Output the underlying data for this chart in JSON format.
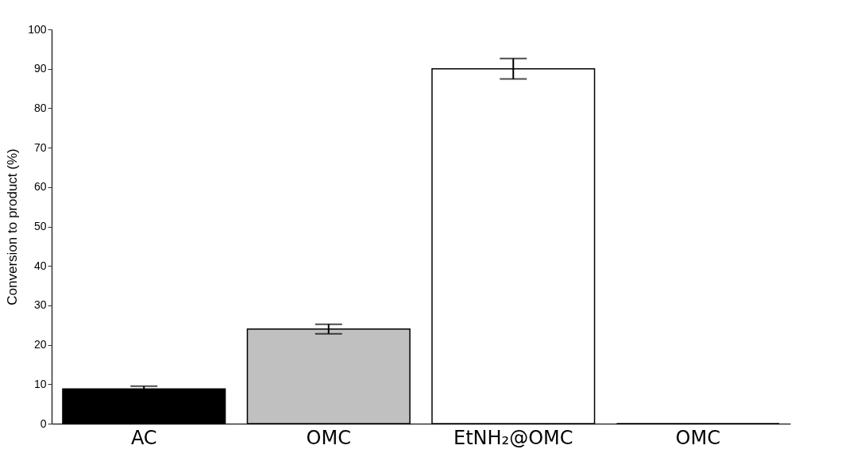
{
  "chart_data": {
    "type": "bar",
    "ylabel": "Conversion to product (%)",
    "categories": [
      "AC",
      "OMC",
      "EtNH₂@OMC",
      "OMC"
    ],
    "values": [
      8.8,
      24,
      90,
      0
    ],
    "errors": [
      0.7,
      1.2,
      2.6,
      null
    ],
    "colors": [
      "#000000",
      "#c0c0c0",
      "#ffffff",
      "#000000"
    ],
    "ylim": [
      0,
      100
    ],
    "yticks": [
      0,
      10,
      20,
      30,
      40,
      50,
      60,
      70,
      80,
      90,
      100
    ],
    "grid": false
  }
}
